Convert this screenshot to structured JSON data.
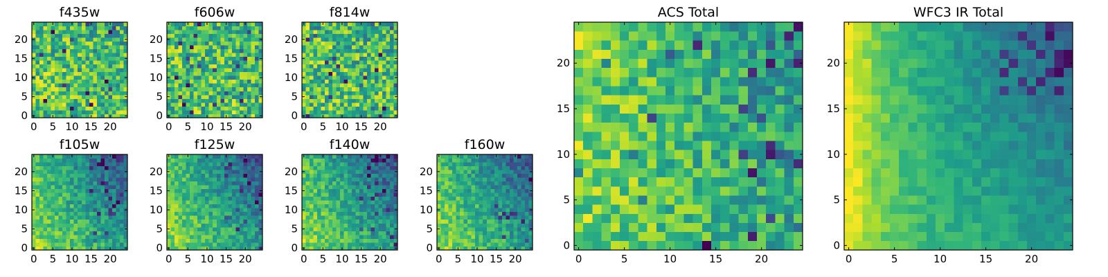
{
  "chart_data": [
    {
      "type": "heatmap",
      "title": "f435w",
      "grid_size": 25,
      "xticks": [
        0,
        5,
        10,
        15,
        20
      ],
      "yticks": [
        0,
        5,
        10,
        15,
        20
      ],
      "xlim": [
        0,
        25
      ],
      "ylim": [
        0,
        25
      ],
      "colormap": "viridis",
      "pattern": "noisy_bright",
      "seed": 11
    },
    {
      "type": "heatmap",
      "title": "f606w",
      "grid_size": 25,
      "xticks": [
        0,
        5,
        10,
        15,
        20
      ],
      "yticks": [
        0,
        5,
        10,
        15,
        20
      ],
      "xlim": [
        0,
        25
      ],
      "ylim": [
        0,
        25
      ],
      "colormap": "viridis",
      "pattern": "noisy_bright",
      "seed": 23
    },
    {
      "type": "heatmap",
      "title": "f814w",
      "grid_size": 25,
      "xticks": [
        0,
        5,
        10,
        15,
        20
      ],
      "yticks": [
        0,
        5,
        10,
        15,
        20
      ],
      "xlim": [
        0,
        25
      ],
      "ylim": [
        0,
        25
      ],
      "colormap": "viridis",
      "pattern": "noisy_bright",
      "seed": 37
    },
    {
      "type": "heatmap",
      "title": "f105w",
      "grid_size": 25,
      "xticks": [
        0,
        5,
        10,
        15,
        20
      ],
      "yticks": [
        0,
        5,
        10,
        15,
        20
      ],
      "xlim": [
        0,
        25
      ],
      "ylim": [
        0,
        25
      ],
      "colormap": "viridis",
      "pattern": "gradient_dark_topright",
      "seed": 41
    },
    {
      "type": "heatmap",
      "title": "f125w",
      "grid_size": 25,
      "xticks": [
        0,
        5,
        10,
        15,
        20
      ],
      "yticks": [
        0,
        5,
        10,
        15,
        20
      ],
      "xlim": [
        0,
        25
      ],
      "ylim": [
        0,
        25
      ],
      "colormap": "viridis",
      "pattern": "gradient_dark_topright",
      "seed": 53
    },
    {
      "type": "heatmap",
      "title": "f140w",
      "grid_size": 25,
      "xticks": [
        0,
        5,
        10,
        15,
        20
      ],
      "yticks": [
        0,
        5,
        10,
        15,
        20
      ],
      "xlim": [
        0,
        25
      ],
      "ylim": [
        0,
        25
      ],
      "colormap": "viridis",
      "pattern": "gradient_dark_topright",
      "seed": 67
    },
    {
      "type": "heatmap",
      "title": "f160w",
      "grid_size": 25,
      "xticks": [
        0,
        5,
        10,
        15,
        20
      ],
      "yticks": [
        0,
        5,
        10,
        15,
        20
      ],
      "xlim": [
        0,
        25
      ],
      "ylim": [
        0,
        25
      ],
      "colormap": "viridis",
      "pattern": "gradient_dark_topright",
      "seed": 79
    },
    {
      "type": "heatmap",
      "title": "ACS Total",
      "grid_size": 25,
      "xticks": [
        0,
        5,
        10,
        15,
        20
      ],
      "yticks": [
        0,
        5,
        10,
        15,
        20
      ],
      "xlim": [
        0,
        25
      ],
      "ylim": [
        0,
        25
      ],
      "colormap": "viridis",
      "pattern": "acs_total",
      "seed": 97
    },
    {
      "type": "heatmap",
      "title": "WFC3 IR Total",
      "grid_size": 25,
      "xticks": [
        0,
        5,
        10,
        15,
        20
      ],
      "yticks": [
        0,
        5,
        10,
        15,
        20
      ],
      "xlim": [
        0,
        25
      ],
      "ylim": [
        0,
        25
      ],
      "colormap": "viridis",
      "pattern": "ir_total",
      "seed": 131
    }
  ]
}
